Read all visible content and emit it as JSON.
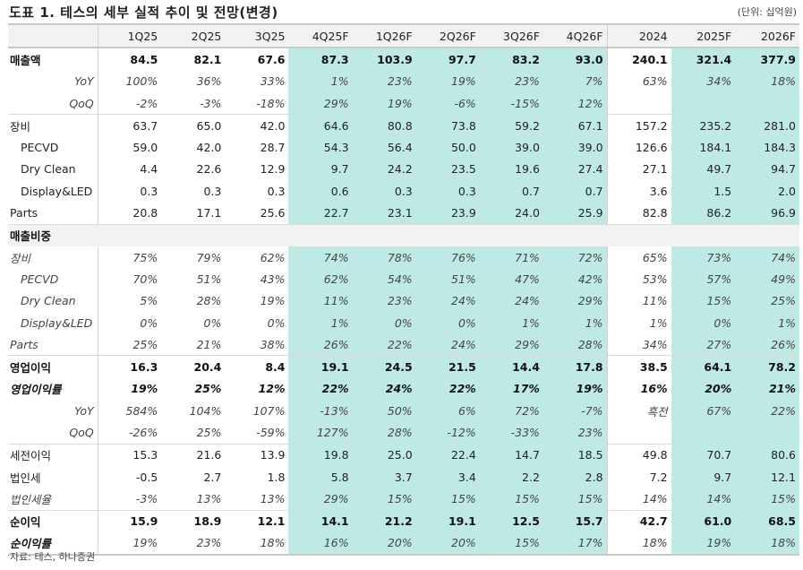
{
  "title": "도표 1. 테스의 세부 실적 추이 및 전망(변경)",
  "unit": "(단위: 십억원)",
  "source": "자료: 테스, 하나증권",
  "columns": [
    "1Q25",
    "2Q25",
    "3Q25",
    "4Q25F",
    "1Q26F",
    "2Q26F",
    "3Q26F",
    "4Q26F",
    "2024",
    "2025F",
    "2026F"
  ],
  "rows": [
    {
      "label": "매출액",
      "style": "bold",
      "values": [
        "84.5",
        "82.1",
        "67.6",
        "87.3",
        "103.9",
        "97.7",
        "83.2",
        "93.0",
        "240.1",
        "321.4",
        "377.9"
      ]
    },
    {
      "label": "YoY",
      "style": "ital-right",
      "values": [
        "100%",
        "36%",
        "33%",
        "1%",
        "23%",
        "19%",
        "23%",
        "7%",
        "63%",
        "34%",
        "18%"
      ]
    },
    {
      "label": "QoQ",
      "style": "ital-right",
      "values": [
        "-2%",
        "-3%",
        "-18%",
        "29%",
        "19%",
        "-6%",
        "-15%",
        "12%",
        "",
        "",
        ""
      ]
    },
    {
      "label": "장비",
      "style": "normal",
      "values": [
        "63.7",
        "65.0",
        "42.0",
        "64.6",
        "80.8",
        "73.8",
        "59.2",
        "67.1",
        "157.2",
        "235.2",
        "281.0"
      ]
    },
    {
      "label": "PECVD",
      "style": "normal-indent",
      "values": [
        "59.0",
        "42.0",
        "28.7",
        "54.3",
        "56.4",
        "50.0",
        "39.0",
        "39.0",
        "126.6",
        "184.1",
        "184.3"
      ]
    },
    {
      "label": "Dry Clean",
      "style": "normal-indent",
      "values": [
        "4.4",
        "22.6",
        "12.9",
        "9.7",
        "24.2",
        "23.5",
        "19.6",
        "27.4",
        "27.1",
        "49.7",
        "94.7"
      ]
    },
    {
      "label": "Display&LED",
      "style": "normal-indent",
      "values": [
        "0.3",
        "0.3",
        "0.3",
        "0.6",
        "0.3",
        "0.3",
        "0.7",
        "0.7",
        "3.6",
        "1.5",
        "2.0"
      ]
    },
    {
      "label": "Parts",
      "style": "normal",
      "values": [
        "20.8",
        "17.1",
        "25.6",
        "22.7",
        "23.1",
        "23.9",
        "24.0",
        "25.9",
        "82.8",
        "86.2",
        "96.9"
      ]
    },
    {
      "label": "매출비중",
      "style": "section",
      "values": []
    },
    {
      "label": "장비",
      "style": "ital",
      "values": [
        "75%",
        "79%",
        "62%",
        "74%",
        "78%",
        "76%",
        "71%",
        "72%",
        "65%",
        "73%",
        "74%"
      ]
    },
    {
      "label": "PECVD",
      "style": "ital-indent",
      "values": [
        "70%",
        "51%",
        "43%",
        "62%",
        "54%",
        "51%",
        "47%",
        "42%",
        "53%",
        "57%",
        "49%"
      ]
    },
    {
      "label": "Dry Clean",
      "style": "ital-indent",
      "values": [
        "5%",
        "28%",
        "19%",
        "11%",
        "23%",
        "24%",
        "24%",
        "29%",
        "11%",
        "15%",
        "25%"
      ]
    },
    {
      "label": "Display&LED",
      "style": "ital-indent",
      "values": [
        "0%",
        "0%",
        "0%",
        "1%",
        "0%",
        "0%",
        "1%",
        "1%",
        "1%",
        "0%",
        "1%"
      ]
    },
    {
      "label": "Parts",
      "style": "ital",
      "values": [
        "25%",
        "21%",
        "38%",
        "26%",
        "22%",
        "24%",
        "29%",
        "28%",
        "34%",
        "27%",
        "26%"
      ]
    },
    {
      "label": "영업이익",
      "style": "bold",
      "values": [
        "16.3",
        "20.4",
        "8.4",
        "19.1",
        "24.5",
        "21.5",
        "14.4",
        "17.8",
        "38.5",
        "64.1",
        "78.2"
      ]
    },
    {
      "label": "영업이익률",
      "style": "italbold",
      "values": [
        "19%",
        "25%",
        "12%",
        "22%",
        "24%",
        "22%",
        "17%",
        "19%",
        "16%",
        "20%",
        "21%"
      ]
    },
    {
      "label": "YoY",
      "style": "ital-right",
      "values": [
        "584%",
        "104%",
        "107%",
        "-13%",
        "50%",
        "6%",
        "72%",
        "-7%",
        "흑전",
        "67%",
        "22%"
      ]
    },
    {
      "label": "QoQ",
      "style": "ital-right",
      "values": [
        "-26%",
        "25%",
        "-59%",
        "127%",
        "28%",
        "-12%",
        "-33%",
        "23%",
        "",
        "",
        ""
      ]
    },
    {
      "label": "세전이익",
      "style": "normal",
      "values": [
        "15.3",
        "21.6",
        "13.9",
        "19.8",
        "25.0",
        "22.4",
        "14.7",
        "18.5",
        "49.8",
        "70.7",
        "80.6"
      ]
    },
    {
      "label": "법인세",
      "style": "normal",
      "values": [
        "-0.5",
        "2.7",
        "1.8",
        "5.8",
        "3.7",
        "3.4",
        "2.2",
        "2.8",
        "7.2",
        "9.7",
        "12.1"
      ]
    },
    {
      "label": "법인세율",
      "style": "ital",
      "values": [
        "-3%",
        "13%",
        "13%",
        "29%",
        "15%",
        "15%",
        "15%",
        "15%",
        "14%",
        "14%",
        "15%"
      ]
    },
    {
      "label": "순이익",
      "style": "bold",
      "values": [
        "15.9",
        "18.9",
        "12.1",
        "14.1",
        "21.2",
        "19.1",
        "12.5",
        "15.7",
        "42.7",
        "61.0",
        "68.5"
      ]
    },
    {
      "label": "순이익률",
      "style": "italbold-labelonly",
      "values": [
        "19%",
        "23%",
        "18%",
        "16%",
        "20%",
        "20%",
        "15%",
        "17%",
        "18%",
        "19%",
        "18%"
      ]
    }
  ],
  "colors": {
    "forecast_fill": "#bfe9e5",
    "header_fill": "#f2f2f2",
    "rule": "#c8c8c8"
  }
}
